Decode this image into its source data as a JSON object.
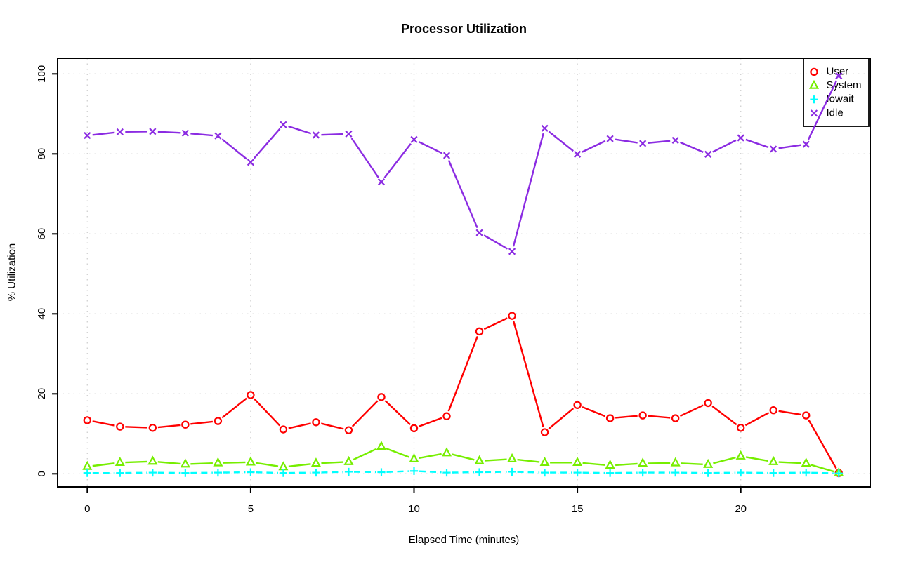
{
  "chart_data": {
    "type": "line",
    "title": "Processor Utilization",
    "xlabel": "Elapsed Time (minutes)",
    "ylabel": "% Utilization",
    "xlim": [
      0,
      23
    ],
    "ylim": [
      0,
      100
    ],
    "xticks": [
      0,
      5,
      10,
      15,
      20
    ],
    "yticks": [
      0,
      20,
      40,
      60,
      80,
      100
    ],
    "grid": "dotted",
    "grid_color": "#d3d3d3",
    "legend_position": "top-right",
    "plot_style": "points-and-lines",
    "x": [
      0,
      1,
      2,
      3,
      4,
      5,
      6,
      7,
      8,
      9,
      10,
      11,
      12,
      13,
      14,
      15,
      16,
      17,
      18,
      19,
      20,
      21,
      22,
      23
    ],
    "series": [
      {
        "name": "User",
        "color": "#ff0000",
        "marker": "circle",
        "dashed": false,
        "values": [
          13.4,
          11.8,
          11.5,
          12.3,
          13.2,
          19.7,
          11.1,
          12.9,
          10.9,
          19.2,
          11.4,
          14.4,
          35.6,
          39.5,
          10.4,
          17.2,
          13.9,
          14.6,
          13.9,
          17.7,
          11.5,
          15.9,
          14.6,
          0.2
        ]
      },
      {
        "name": "System",
        "color": "#76ee00",
        "marker": "triangle",
        "dashed": false,
        "values": [
          1.8,
          2.8,
          3.1,
          2.4,
          2.7,
          2.9,
          1.7,
          2.6,
          3.0,
          6.8,
          3.7,
          5.2,
          3.2,
          3.7,
          2.8,
          2.8,
          2.1,
          2.6,
          2.7,
          2.3,
          4.4,
          3.0,
          2.6,
          0.2
        ]
      },
      {
        "name": "Iowait",
        "color": "#00ffff",
        "marker": "plus",
        "dashed": true,
        "values": [
          0.2,
          0.2,
          0.3,
          0.2,
          0.3,
          0.4,
          0.2,
          0.3,
          0.5,
          0.4,
          0.7,
          0.3,
          0.4,
          0.5,
          0.3,
          0.3,
          0.2,
          0.3,
          0.3,
          0.2,
          0.3,
          0.2,
          0.3,
          0.1
        ]
      },
      {
        "name": "Idle",
        "color": "#8b2be2",
        "marker": "x",
        "dashed": false,
        "values": [
          84.6,
          85.5,
          85.6,
          85.2,
          84.5,
          77.9,
          87.3,
          84.7,
          85.0,
          73.0,
          83.6,
          79.6,
          60.3,
          55.6,
          86.4,
          79.9,
          83.8,
          82.6,
          83.4,
          79.9,
          84.0,
          81.2,
          82.4,
          99.5
        ]
      }
    ]
  }
}
